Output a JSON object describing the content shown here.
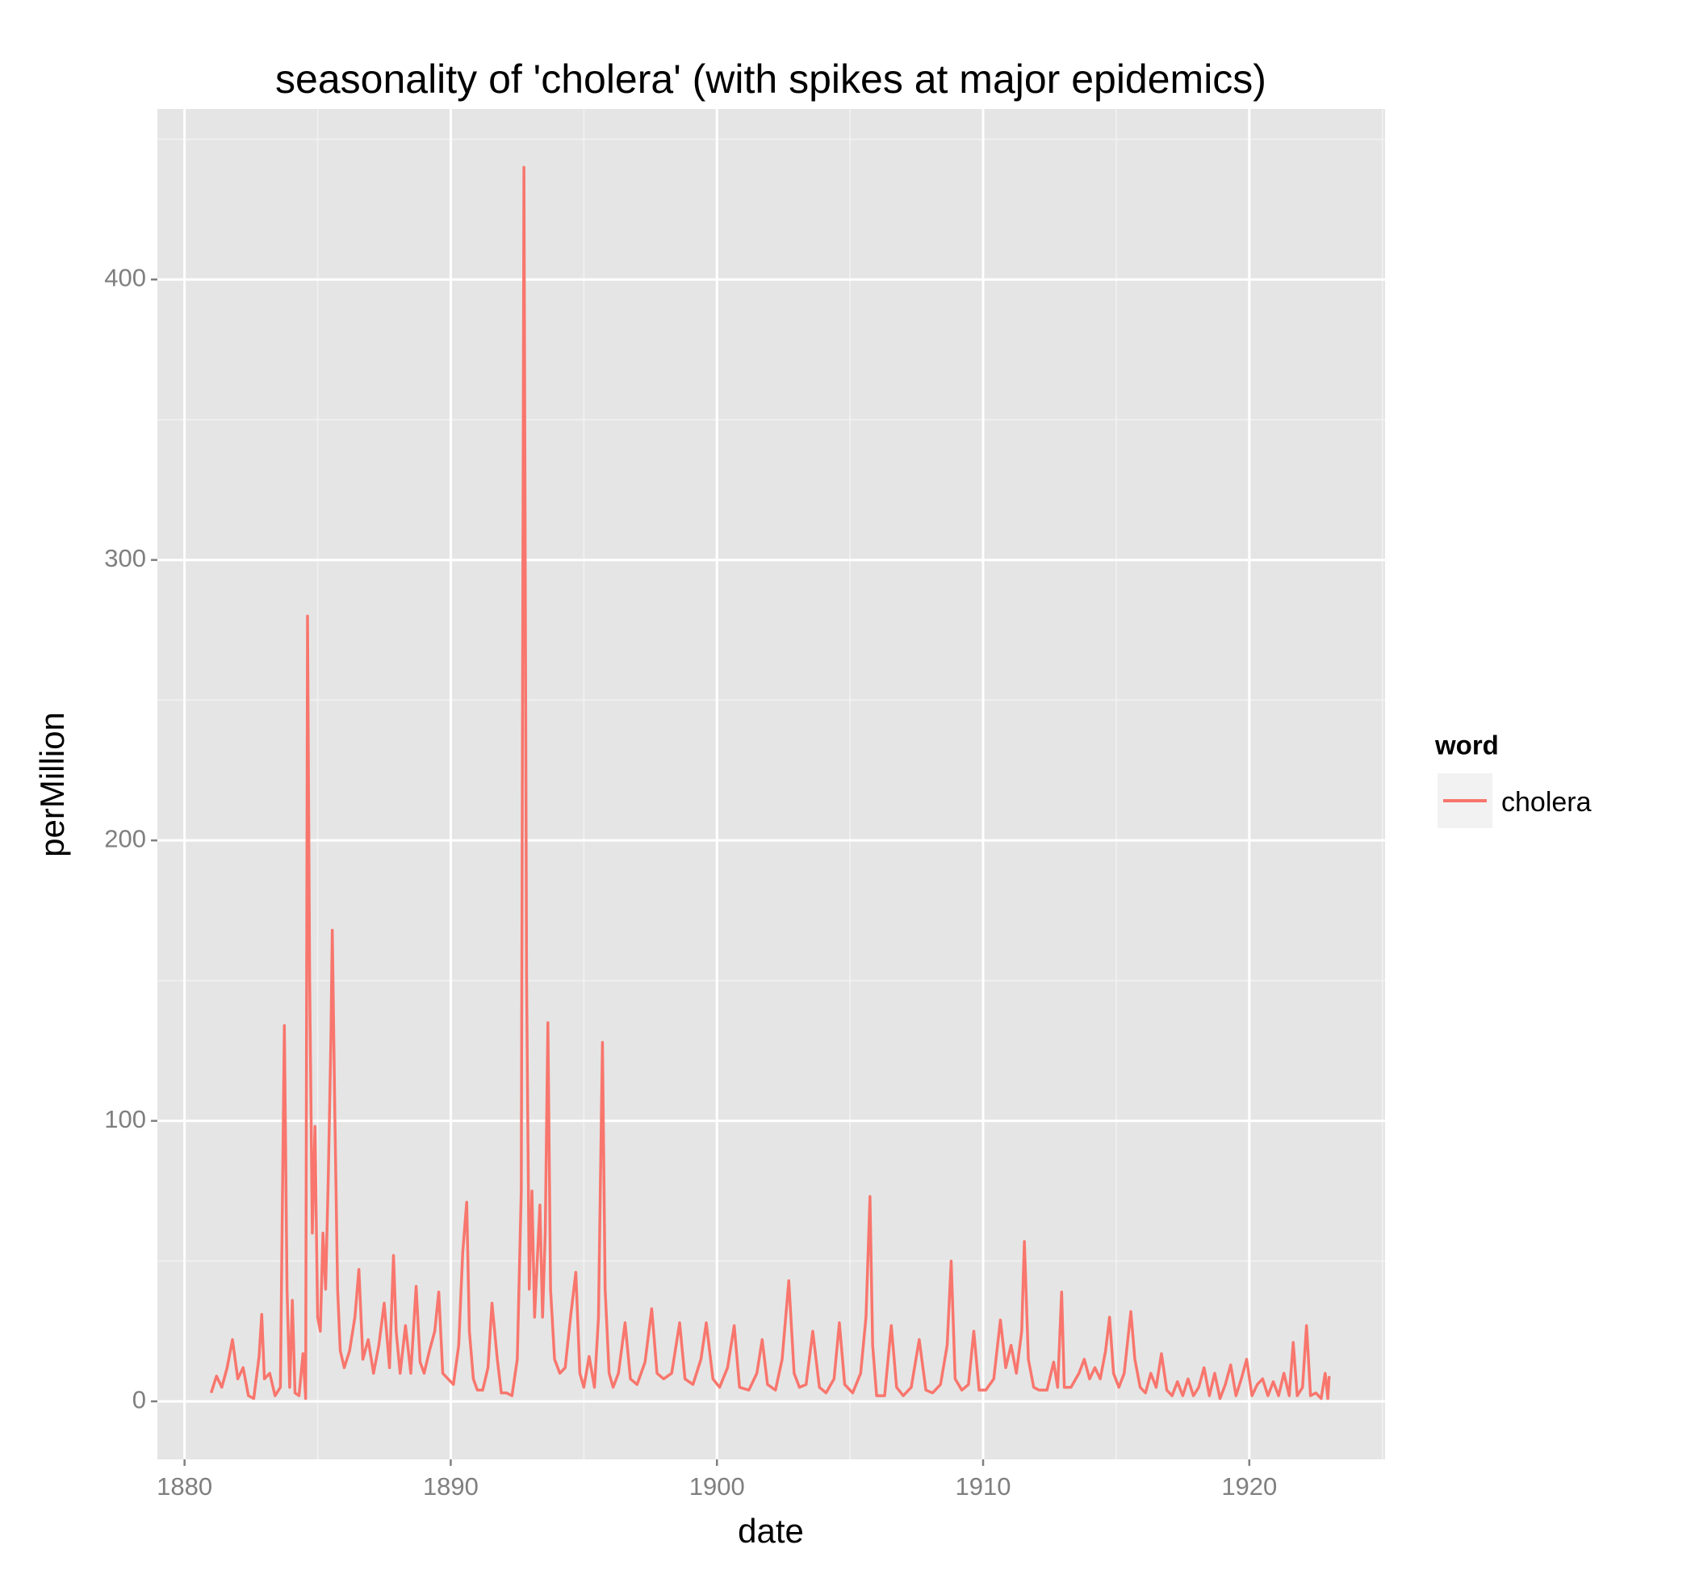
{
  "chart_data": {
    "type": "line",
    "title": "seasonality of 'cholera' (with spikes at major epidemics)",
    "x_label": "date",
    "y_label": "perMillion",
    "legend_title": "word",
    "xlim": [
      1878.98,
      1925.1
    ],
    "xticks": [
      1880,
      1890,
      1900,
      1910,
      1920
    ],
    "ylim": [
      -20.7,
      460.8
    ],
    "yticks": [
      0,
      100,
      200,
      300,
      400
    ],
    "grid": true,
    "minor_grid": true,
    "legend_position": "right",
    "series": [
      {
        "name": "cholera",
        "color": "#f8766d",
        "x": [
          1881.0,
          1881.2,
          1881.4,
          1881.6,
          1881.8,
          1882.0,
          1882.2,
          1882.4,
          1882.6,
          1882.8,
          1882.9,
          1883.0,
          1883.2,
          1883.4,
          1883.6,
          1883.75,
          1883.85,
          1883.95,
          1884.05,
          1884.15,
          1884.3,
          1884.45,
          1884.55,
          1884.62,
          1884.7,
          1884.8,
          1884.9,
          1885.0,
          1885.1,
          1885.2,
          1885.3,
          1885.4,
          1885.5,
          1885.55,
          1885.65,
          1885.75,
          1885.85,
          1886.0,
          1886.2,
          1886.4,
          1886.55,
          1886.7,
          1886.9,
          1887.1,
          1887.3,
          1887.5,
          1887.7,
          1887.85,
          1887.95,
          1888.1,
          1888.3,
          1888.5,
          1888.7,
          1888.85,
          1889.0,
          1889.2,
          1889.4,
          1889.55,
          1889.7,
          1889.9,
          1890.1,
          1890.3,
          1890.45,
          1890.6,
          1890.7,
          1890.85,
          1891.0,
          1891.2,
          1891.4,
          1891.55,
          1891.75,
          1891.9,
          1892.1,
          1892.3,
          1892.5,
          1892.65,
          1892.75,
          1892.85,
          1892.95,
          1893.05,
          1893.15,
          1893.25,
          1893.35,
          1893.45,
          1893.55,
          1893.65,
          1893.75,
          1893.9,
          1894.1,
          1894.3,
          1894.5,
          1894.7,
          1894.85,
          1895.0,
          1895.2,
          1895.4,
          1895.55,
          1895.7,
          1895.8,
          1895.95,
          1896.1,
          1896.3,
          1896.55,
          1896.75,
          1897.0,
          1897.3,
          1897.55,
          1897.75,
          1898.0,
          1898.3,
          1898.6,
          1898.8,
          1899.1,
          1899.4,
          1899.6,
          1899.85,
          1900.1,
          1900.4,
          1900.65,
          1900.85,
          1901.2,
          1901.5,
          1901.7,
          1901.9,
          1902.2,
          1902.45,
          1902.7,
          1902.9,
          1903.1,
          1903.35,
          1903.6,
          1903.85,
          1904.1,
          1904.4,
          1904.6,
          1904.8,
          1905.1,
          1905.4,
          1905.6,
          1905.75,
          1905.85,
          1906.0,
          1906.3,
          1906.55,
          1906.75,
          1907.0,
          1907.3,
          1907.6,
          1907.85,
          1908.1,
          1908.4,
          1908.65,
          1908.8,
          1908.95,
          1909.2,
          1909.45,
          1909.65,
          1909.85,
          1910.1,
          1910.4,
          1910.65,
          1910.85,
          1911.05,
          1911.25,
          1911.45,
          1911.55,
          1911.7,
          1911.9,
          1912.1,
          1912.4,
          1912.65,
          1912.8,
          1912.95,
          1913.05,
          1913.3,
          1913.6,
          1913.8,
          1914.0,
          1914.2,
          1914.4,
          1914.6,
          1914.75,
          1914.9,
          1915.1,
          1915.3,
          1915.55,
          1915.7,
          1915.9,
          1916.1,
          1916.3,
          1916.5,
          1916.7,
          1916.9,
          1917.1,
          1917.3,
          1917.5,
          1917.7,
          1917.9,
          1918.1,
          1918.3,
          1918.5,
          1918.7,
          1918.9,
          1919.1,
          1919.3,
          1919.5,
          1919.7,
          1919.9,
          1920.1,
          1920.3,
          1920.5,
          1920.7,
          1920.9,
          1921.1,
          1921.3,
          1921.5,
          1921.65,
          1921.8,
          1922.0,
          1922.15,
          1922.3,
          1922.5,
          1922.7,
          1922.85,
          1922.95,
          1923.0
        ],
        "values": [
          3,
          9,
          5,
          12,
          22,
          8,
          12,
          2,
          1,
          16,
          31,
          8,
          10,
          2,
          5,
          134,
          40,
          5,
          36,
          3,
          2,
          17,
          1,
          280,
          150,
          60,
          98,
          30,
          25,
          60,
          40,
          80,
          130,
          168,
          100,
          40,
          18,
          12,
          18,
          30,
          47,
          15,
          22,
          10,
          20,
          35,
          12,
          52,
          25,
          10,
          27,
          10,
          41,
          14,
          10,
          18,
          25,
          39,
          10,
          8,
          6,
          20,
          53,
          71,
          25,
          8,
          4,
          4,
          12,
          35,
          15,
          3,
          3,
          2,
          15,
          75,
          440,
          150,
          40,
          75,
          30,
          50,
          70,
          30,
          60,
          135,
          40,
          15,
          10,
          12,
          30,
          46,
          10,
          5,
          16,
          5,
          30,
          128,
          40,
          10,
          5,
          10,
          28,
          8,
          6,
          14,
          33,
          10,
          8,
          10,
          28,
          8,
          6,
          15,
          28,
          8,
          5,
          12,
          27,
          5,
          4,
          10,
          22,
          6,
          4,
          15,
          43,
          10,
          5,
          6,
          25,
          5,
          3,
          8,
          28,
          6,
          3,
          10,
          30,
          73,
          20,
          2,
          2,
          27,
          5,
          2,
          5,
          22,
          4,
          3,
          6,
          20,
          50,
          8,
          4,
          6,
          25,
          4,
          4,
          8,
          29,
          12,
          20,
          10,
          25,
          57,
          15,
          5,
          4,
          4,
          14,
          5,
          39,
          5,
          5,
          10,
          15,
          8,
          12,
          8,
          18,
          30,
          10,
          5,
          10,
          32,
          15,
          5,
          3,
          10,
          5,
          17,
          4,
          2,
          7,
          2,
          8,
          2,
          5,
          12,
          2,
          10,
          1,
          6,
          13,
          2,
          8,
          15,
          2,
          6,
          8,
          2,
          7,
          2,
          10,
          2,
          21,
          2,
          5,
          27,
          2,
          3,
          1,
          10,
          1,
          9
        ]
      }
    ]
  }
}
